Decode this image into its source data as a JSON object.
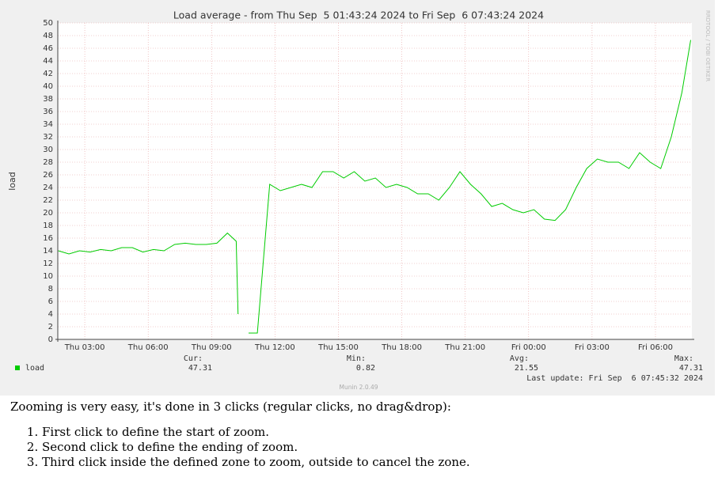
{
  "chart_data": {
    "type": "line",
    "title": "Load average - from Thu Sep  5 01:43:24 2024 to Fri Sep  6 07:43:24 2024",
    "y_label": "load",
    "watermark": "RRDTOOL / TOBI OETIKER",
    "footer": "Munin 2.0.49",
    "last_update": "Last update: Fri Sep  6 07:45:32 2024",
    "xlim": [
      "Thu 01:43:24",
      "Fri 07:43:24"
    ],
    "xticks": [
      "Thu 03:00",
      "Thu 06:00",
      "Thu 09:00",
      "Thu 12:00",
      "Thu 15:00",
      "Thu 18:00",
      "Thu 21:00",
      "Fri 00:00",
      "Fri 03:00",
      "Fri 06:00"
    ],
    "ylim": [
      0,
      50
    ],
    "yticks": [
      0,
      2,
      4,
      6,
      8,
      10,
      12,
      14,
      16,
      18,
      20,
      22,
      24,
      26,
      28,
      30,
      32,
      34,
      36,
      38,
      40,
      42,
      44,
      46,
      48,
      50
    ],
    "grid": true,
    "x": [
      "Thu 01:45",
      "Thu 02:15",
      "Thu 02:45",
      "Thu 03:15",
      "Thu 03:45",
      "Thu 04:15",
      "Thu 04:45",
      "Thu 05:15",
      "Thu 05:45",
      "Thu 06:15",
      "Thu 06:45",
      "Thu 07:15",
      "Thu 07:45",
      "Thu 08:15",
      "Thu 08:45",
      "Thu 09:15",
      "Thu 09:45",
      "Thu 10:10",
      "Thu 10:15",
      "Thu 10:30",
      "Thu 10:45",
      "Thu 11:10",
      "Thu 11:45",
      "Thu 12:15",
      "Thu 12:45",
      "Thu 13:15",
      "Thu 13:45",
      "Thu 14:15",
      "Thu 14:45",
      "Thu 15:15",
      "Thu 15:45",
      "Thu 16:15",
      "Thu 16:45",
      "Thu 17:15",
      "Thu 17:45",
      "Thu 18:15",
      "Thu 18:45",
      "Thu 19:15",
      "Thu 19:45",
      "Thu 20:15",
      "Thu 20:45",
      "Thu 21:15",
      "Thu 21:45",
      "Thu 22:15",
      "Thu 22:45",
      "Thu 23:15",
      "Thu 23:45",
      "Fri 00:15",
      "Fri 00:45",
      "Fri 01:15",
      "Fri 01:45",
      "Fri 02:15",
      "Fri 02:45",
      "Fri 03:15",
      "Fri 03:45",
      "Fri 04:15",
      "Fri 04:45",
      "Fri 05:15",
      "Fri 05:45",
      "Fri 06:15",
      "Fri 06:45",
      "Fri 07:15",
      "Fri 07:40"
    ],
    "series": [
      {
        "name": "load",
        "color": "#00cc00",
        "values": [
          14,
          13.5,
          14,
          13.8,
          14.2,
          14,
          14.5,
          14.5,
          13.8,
          14.2,
          14,
          15,
          15.2,
          15,
          15,
          15.2,
          16.8,
          15.5,
          4,
          null,
          1,
          1,
          24.5,
          23.5,
          24,
          24.5,
          24,
          26.5,
          26.5,
          25.5,
          26.5,
          25,
          25.5,
          24,
          24.5,
          24,
          23,
          23,
          22,
          24,
          26.5,
          24.5,
          23,
          21,
          21.5,
          20.5,
          20,
          20.5,
          19,
          18.8,
          20.5,
          24,
          27,
          28.5,
          28,
          28,
          27,
          29.5,
          28,
          27,
          32,
          39,
          47.3
        ],
        "stats": [
          {
            "label": "Cur:",
            "value": 47.31
          },
          {
            "label": "Min:",
            "value": 0.82
          },
          {
            "label": "Avg:",
            "value": 21.55
          },
          {
            "label": "Max:",
            "value": 47.31
          }
        ]
      }
    ]
  },
  "instructions": {
    "intro": "Zooming is very easy, it's done in 3 clicks (regular clicks, no drag&drop):",
    "steps": [
      "First click to define the start of zoom.",
      "Second click to define the ending of zoom.",
      "Third click inside the defined zone to zoom, outside to cancel the zone."
    ]
  }
}
